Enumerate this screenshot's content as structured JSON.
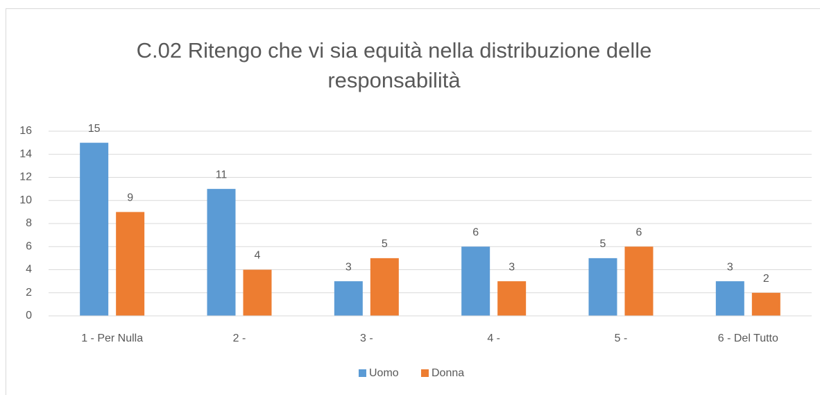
{
  "chart_data": {
    "type": "bar",
    "title": [
      "C.02 Ritengo che vi sia equità nella distribuzione delle",
      "responsabilità"
    ],
    "categories": [
      "1 - Per Nulla",
      "2 -",
      "3 -",
      "4 -",
      "5 -",
      "6 - Del Tutto"
    ],
    "series": [
      {
        "name": "Uomo",
        "color": "#5b9bd5",
        "values": [
          15,
          11,
          3,
          6,
          5,
          3
        ]
      },
      {
        "name": "Donna",
        "color": "#ed7d31",
        "values": [
          9,
          4,
          5,
          3,
          6,
          2
        ]
      }
    ],
    "ylim": [
      0,
      16
    ],
    "yticks": [
      0,
      2,
      4,
      6,
      8,
      10,
      12,
      14,
      16
    ],
    "grid": true,
    "legend": "bottom"
  }
}
